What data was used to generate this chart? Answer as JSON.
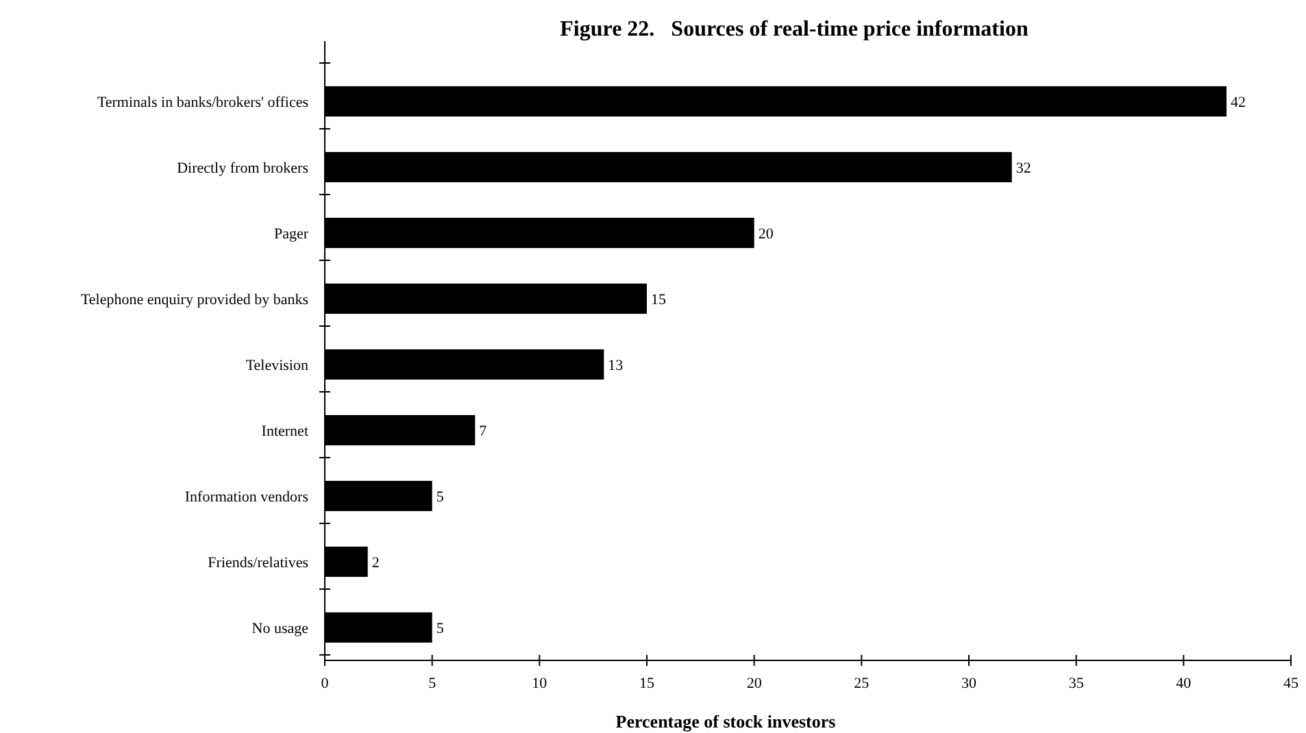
{
  "chart_data": {
    "type": "bar",
    "orientation": "horizontal",
    "title": "Figure 22.   Sources of real-time price information",
    "xlabel": "Percentage of stock investors",
    "categories": [
      "Terminals in banks/brokers' offices",
      "Directly from brokers",
      "Pager",
      "Telephone enquiry provided by banks",
      "Television",
      "Internet",
      "Information vendors",
      "Friends/relatives",
      "No usage"
    ],
    "values": [
      42,
      32,
      20,
      15,
      13,
      7,
      5,
      2,
      5
    ],
    "color": "#000000",
    "xlim": [
      0,
      45
    ],
    "xticks": [
      0,
      5,
      10,
      15,
      20,
      25,
      30,
      35,
      40,
      45
    ],
    "grid": false,
    "data_labels": true
  }
}
